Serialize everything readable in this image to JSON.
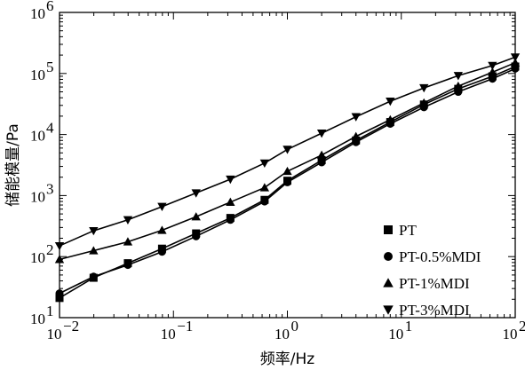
{
  "chart_data": {
    "type": "line",
    "title": "",
    "xlabel": "频率/Hz",
    "ylabel": "储能模量/Pa",
    "x_scale": "log",
    "y_scale": "log",
    "xlim": [
      0.01,
      100
    ],
    "ylim": [
      10,
      1000000
    ],
    "x_tick_labels": [
      {
        "value": 0.01,
        "base": "10",
        "exp": "−2"
      },
      {
        "value": 0.1,
        "base": "10",
        "exp": "−1"
      },
      {
        "value": 1,
        "base": "10",
        "exp": "0"
      },
      {
        "value": 10,
        "base": "10",
        "exp": "1"
      },
      {
        "value": 100,
        "base": "10",
        "exp": "2"
      }
    ],
    "y_tick_labels": [
      {
        "value": 10,
        "base": "10",
        "exp": "1"
      },
      {
        "value": 100,
        "base": "10",
        "exp": "2"
      },
      {
        "value": 1000,
        "base": "10",
        "exp": "3"
      },
      {
        "value": 10000,
        "base": "10",
        "exp": "4"
      },
      {
        "value": 100000,
        "base": "10",
        "exp": "5"
      },
      {
        "value": 1000000,
        "base": "10",
        "exp": "6"
      }
    ],
    "grid": false,
    "legend_position": "bottom-right",
    "x": [
      0.01,
      0.0199,
      0.0398,
      0.0794,
      0.158,
      0.316,
      0.631,
      1.0,
      2.0,
      4.0,
      8.0,
      15.8,
      31.6,
      63.1,
      100
    ],
    "series": [
      {
        "name": "PT",
        "marker": "square",
        "values": [
          21,
          45,
          78,
          135,
          240,
          430,
          850,
          1750,
          3800,
          8000,
          16000,
          31000,
          56000,
          90000,
          130000
        ]
      },
      {
        "name": "PT-0.5%MDI",
        "marker": "circle",
        "values": [
          25,
          47,
          73,
          120,
          215,
          400,
          800,
          1650,
          3500,
          7500,
          15000,
          28000,
          50000,
          82000,
          120000
        ]
      },
      {
        "name": "PT-1%MDI",
        "marker": "triangle-up",
        "values": [
          90,
          125,
          175,
          270,
          450,
          780,
          1350,
          2500,
          4600,
          9300,
          17500,
          33000,
          62000,
          105000,
          150000
        ]
      },
      {
        "name": "PT-3%MDI",
        "marker": "triangle-down",
        "values": [
          150,
          265,
          400,
          660,
          1100,
          1850,
          3400,
          5700,
          10500,
          19500,
          35000,
          58000,
          92000,
          135000,
          185000
        ]
      }
    ]
  }
}
